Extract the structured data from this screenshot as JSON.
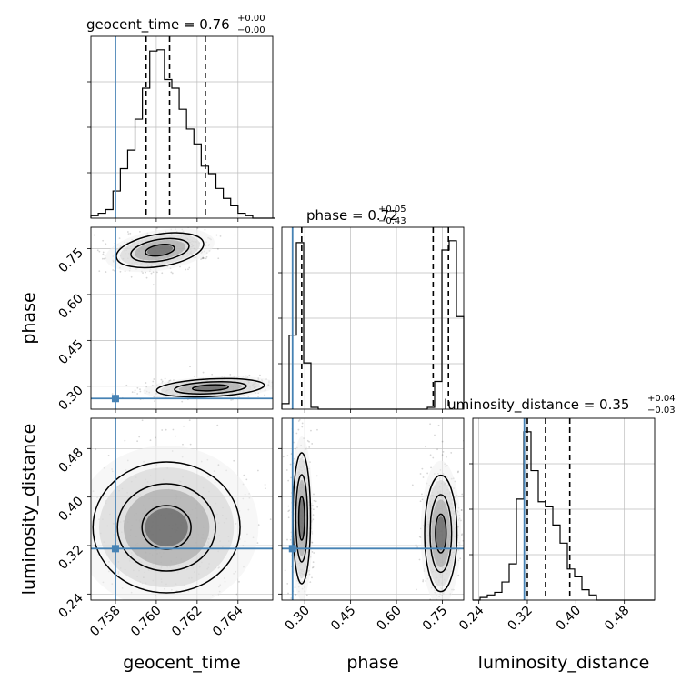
{
  "chart_data": {
    "type": "corner",
    "parameters": [
      "geocent_time",
      "phase",
      "luminosity_distance"
    ],
    "truths": {
      "geocent_time": 0.758,
      "phase": 0.26,
      "luminosity_distance": 0.315
    },
    "truth_color": "#4682b4",
    "grid": true,
    "titles": {
      "geocent_time": {
        "prefix": "geocent_time = ",
        "value": "0.76",
        "plus": "+0.00",
        "minus": "−0.00"
      },
      "phase": {
        "prefix": "phase = ",
        "value": "0.72",
        "plus": "+0.05",
        "minus": "−0.43"
      },
      "luminosity_distance": {
        "prefix": "luminosity_distance = ",
        "value": "0.35",
        "plus": "+0.04",
        "minus": "−0.03"
      }
    },
    "axes": {
      "geocent_time": {
        "range": [
          0.7568,
          0.7657
        ],
        "ticks": [
          0.758,
          0.76,
          0.762,
          0.764
        ],
        "tick_labels": [
          "0.758",
          "0.760",
          "0.762",
          "0.764"
        ],
        "label": "geocent_time"
      },
      "phase": {
        "range": [
          0.225,
          0.82
        ],
        "ticks": [
          0.3,
          0.45,
          0.6,
          0.75
        ],
        "tick_labels": [
          "0.30",
          "0.45",
          "0.60",
          "0.75"
        ],
        "label": "phase"
      },
      "luminosity_distance": {
        "range": [
          0.23,
          0.53
        ],
        "ticks": [
          0.24,
          0.32,
          0.4,
          0.48
        ],
        "tick_labels": [
          "0.24",
          "0.32",
          "0.40",
          "0.48"
        ],
        "label": "luminosity_distance"
      }
    },
    "histograms": {
      "geocent_time": {
        "edges": [
          0.7568,
          0.75716,
          0.75752,
          0.75788,
          0.75824,
          0.7586,
          0.75896,
          0.75932,
          0.75968,
          0.76004,
          0.7604,
          0.76076,
          0.76112,
          0.76148,
          0.76184,
          0.7622,
          0.76256,
          0.76292,
          0.76328,
          0.76364,
          0.764,
          0.76436,
          0.76472,
          0.76508,
          0.76544,
          0.7658
        ],
        "counts": [
          2,
          4,
          7,
          22,
          40,
          55,
          80,
          105,
          135,
          136,
          112,
          105,
          88,
          72,
          60,
          42,
          36,
          24,
          16,
          10,
          4,
          2,
          0,
          0,
          0
        ],
        "quantiles": [
          0.7595,
          0.76065,
          0.7624
        ]
      },
      "phase": {
        "edges": [
          0.225,
          0.2488,
          0.2726,
          0.2964,
          0.3202,
          0.344,
          0.3678,
          0.3916,
          0.4154,
          0.4392,
          0.463,
          0.4868,
          0.5106,
          0.5344,
          0.5582,
          0.582,
          0.6058,
          0.6296,
          0.6534,
          0.6772,
          0.701,
          0.7248,
          0.7486,
          0.7724,
          0.7962,
          0.82
        ],
        "counts": [
          3,
          40,
          90,
          25,
          1,
          0,
          0,
          0,
          0,
          0,
          0,
          0,
          0,
          0,
          0,
          0,
          0,
          0,
          0,
          0,
          1,
          15,
          86,
          91,
          50
        ],
        "quantiles": [
          0.29,
          0.72,
          0.77
        ]
      },
      "luminosity_distance": {
        "edges": [
          0.23,
          0.242,
          0.254,
          0.266,
          0.278,
          0.29,
          0.302,
          0.314,
          0.326,
          0.338,
          0.35,
          0.362,
          0.374,
          0.386,
          0.398,
          0.41,
          0.422,
          0.434,
          0.446,
          0.458,
          0.47,
          0.482,
          0.494,
          0.506,
          0.518,
          0.53
        ],
        "counts": [
          0,
          1,
          2,
          3,
          7,
          14,
          39,
          65,
          50,
          38,
          36,
          29,
          22,
          12,
          9,
          4,
          2,
          0,
          0,
          0,
          0,
          0,
          0,
          0,
          0
        ],
        "quantiles": [
          0.32,
          0.35,
          0.39
        ]
      }
    },
    "joint": {
      "phase_vs_geocent_time": {
        "clusters": [
          {
            "x": 0.76018,
            "y": 0.745,
            "sx": 0.0009,
            "sy": 0.022,
            "tilt": 0.45
          },
          {
            "x": 0.76265,
            "y": 0.295,
            "sx": 0.0011,
            "sy": 0.012,
            "tilt": 0.3
          }
        ]
      },
      "luminosity_distance_vs_geocent_time": {
        "clusters": [
          {
            "x": 0.7605,
            "y": 0.35,
            "sx": 0.0015,
            "sy": 0.045,
            "tilt": 0
          }
        ]
      },
      "luminosity_distance_vs_phase": {
        "clusters": [
          {
            "x": 0.29,
            "y": 0.365,
            "sx": 0.012,
            "sy": 0.045,
            "tilt": 0
          },
          {
            "x": 0.745,
            "y": 0.34,
            "sx": 0.022,
            "sy": 0.04,
            "tilt": 0
          }
        ]
      }
    }
  }
}
